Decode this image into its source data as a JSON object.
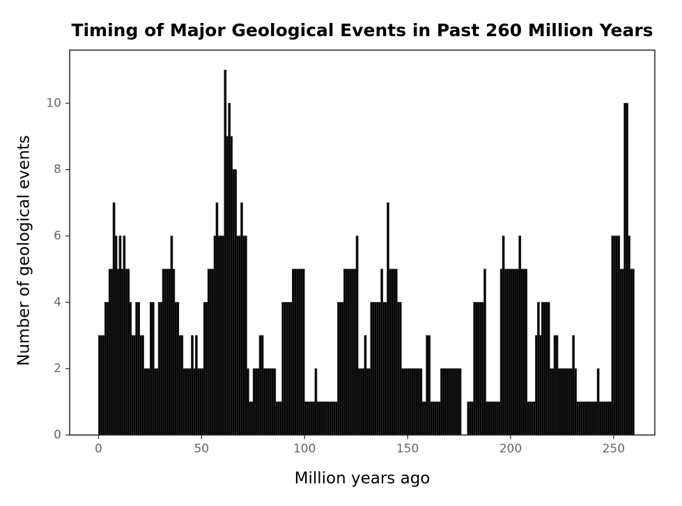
{
  "chart_data": {
    "type": "histogram",
    "title": "Timing of Major Geological Events in Past 260 Million Years",
    "x_label": "Million years ago",
    "y_label": "Number of geological events",
    "color": "#000000",
    "bins": [
      0,
      1,
      2,
      3,
      4,
      5,
      6,
      7,
      8,
      9,
      10,
      11,
      12,
      13,
      14,
      15,
      16,
      17,
      18,
      19,
      20,
      21,
      22,
      23,
      24,
      25,
      26,
      27,
      28,
      29,
      30,
      31,
      32,
      33,
      34,
      35,
      36,
      37,
      38,
      39,
      40,
      41,
      42,
      43,
      44,
      45,
      46,
      47,
      48,
      49,
      50,
      51,
      52,
      53,
      54,
      55,
      56,
      57,
      58,
      59,
      60,
      61,
      62,
      63,
      64,
      65,
      66,
      67,
      68,
      69,
      70,
      71,
      72,
      73,
      74,
      75,
      76,
      77,
      78,
      79,
      80,
      81,
      82,
      83,
      84,
      85,
      86,
      87,
      88,
      89,
      90,
      91,
      92,
      93,
      94,
      95,
      96,
      97,
      98,
      99,
      100,
      101,
      102,
      103,
      104,
      105,
      106,
      107,
      108,
      109,
      110,
      111,
      112,
      113,
      114,
      115,
      116,
      117,
      118,
      119,
      120,
      121,
      122,
      123,
      124,
      125,
      126,
      127,
      128,
      129,
      130,
      131,
      132,
      133,
      134,
      135,
      136,
      137,
      138,
      139,
      140,
      141,
      142,
      143,
      144,
      145,
      146,
      147,
      148,
      149,
      150,
      151,
      152,
      153,
      154,
      155,
      156,
      157,
      158,
      159,
      160,
      161,
      162,
      163,
      164,
      165,
      166,
      167,
      168,
      169,
      170,
      171,
      172,
      173,
      174,
      175,
      176,
      177,
      178,
      179,
      180,
      181,
      182,
      183,
      184,
      185,
      186,
      187,
      188,
      189,
      190,
      191,
      192,
      193,
      194,
      195,
      196,
      197,
      198,
      199,
      200,
      201,
      202,
      203,
      204,
      205,
      206,
      207,
      208,
      209,
      210,
      211,
      212,
      213,
      214,
      215,
      216,
      217,
      218,
      219,
      220,
      221,
      222,
      223,
      224,
      225,
      226,
      227,
      228,
      229,
      230,
      231,
      232,
      233,
      234,
      235,
      236,
      237,
      238,
      239,
      240,
      241,
      242,
      243,
      244,
      245,
      246,
      247,
      248,
      249,
      250,
      251,
      252,
      253,
      254,
      255,
      256,
      257,
      258,
      259,
      260
    ],
    "values": [
      3,
      3,
      3,
      4,
      4,
      5,
      5,
      7,
      6,
      5,
      6,
      5,
      6,
      5,
      5,
      4,
      3,
      3,
      4,
      4,
      3,
      3,
      2,
      2,
      2,
      4,
      4,
      2,
      2,
      4,
      4,
      5,
      5,
      5,
      5,
      6,
      5,
      4,
      4,
      3,
      3,
      2,
      2,
      2,
      2,
      3,
      2,
      3,
      2,
      2,
      2,
      4,
      4,
      5,
      5,
      5,
      6,
      7,
      6,
      6,
      6,
      11,
      9,
      10,
      9,
      8,
      8,
      6,
      6,
      7,
      6,
      6,
      2,
      1,
      1,
      2,
      2,
      2,
      3,
      3,
      2,
      2,
      2,
      2,
      2,
      2,
      1,
      1,
      1,
      4,
      4,
      4,
      4,
      4,
      5,
      5,
      5,
      5,
      5,
      5,
      1,
      1,
      1,
      1,
      1,
      2,
      1,
      1,
      1,
      1,
      1,
      1,
      1,
      1,
      1,
      1,
      4,
      4,
      4,
      5,
      5,
      5,
      5,
      5,
      5,
      6,
      2,
      2,
      2,
      3,
      2,
      2,
      4,
      4,
      4,
      4,
      4,
      5,
      4,
      4,
      7,
      5,
      5,
      5,
      5,
      4,
      4,
      2,
      2,
      2,
      2,
      2,
      2,
      2,
      2,
      2,
      2,
      1,
      1,
      3,
      3,
      1,
      1,
      1,
      1,
      1,
      2,
      2,
      2,
      2,
      2,
      2,
      2,
      2,
      2,
      2,
      0,
      0,
      0,
      1,
      1,
      1,
      4,
      4,
      4,
      4,
      4,
      5,
      1,
      1,
      1,
      1,
      1,
      1,
      1,
      5,
      6,
      5,
      5,
      5,
      5,
      5,
      5,
      5,
      6,
      5,
      5,
      5,
      1,
      1,
      1,
      1,
      3,
      4,
      3,
      4,
      4,
      4,
      4,
      2,
      2,
      3,
      3,
      2,
      2,
      2,
      2,
      2,
      2,
      2,
      3,
      2,
      1,
      1,
      1,
      1,
      1,
      1,
      1,
      1,
      1,
      1,
      2,
      1,
      1,
      1,
      1,
      1,
      1,
      6,
      6,
      6,
      6,
      5,
      5,
      10,
      10,
      6,
      5,
      5
    ],
    "xlim": [
      -14,
      270
    ],
    "ylim": [
      0,
      11.6
    ],
    "xticks": [
      0,
      50,
      100,
      150,
      200,
      250
    ],
    "yticks": [
      0,
      2,
      4,
      6,
      8,
      10
    ]
  }
}
